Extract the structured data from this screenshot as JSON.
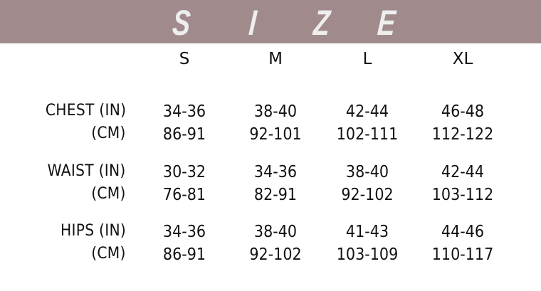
{
  "banner": {
    "title_letters": [
      "S",
      "I",
      "Z",
      "E"
    ],
    "color": "#a08a8b"
  },
  "sizes": [
    "S",
    "M",
    "L",
    "XL"
  ],
  "rows": [
    {
      "label_in": "CHEST (IN)",
      "label_cm": "(CM)",
      "in": [
        "34-36",
        "38-40",
        "42-44",
        "46-48"
      ],
      "cm": [
        "86-91",
        "92-101",
        "102-111",
        "112-122"
      ]
    },
    {
      "label_in": "WAIST (IN)",
      "label_cm": "(CM)",
      "in": [
        "30-32",
        "34-36",
        "38-40",
        "42-44"
      ],
      "cm": [
        "76-81",
        "82-91",
        "92-102",
        "103-112"
      ]
    },
    {
      "label_in": "HIPS (IN)",
      "label_cm": "(CM)",
      "in": [
        "34-36",
        "38-40",
        "41-43",
        "44-46"
      ],
      "cm": [
        "86-91",
        "92-102",
        "103-109",
        "110-117"
      ]
    }
  ]
}
